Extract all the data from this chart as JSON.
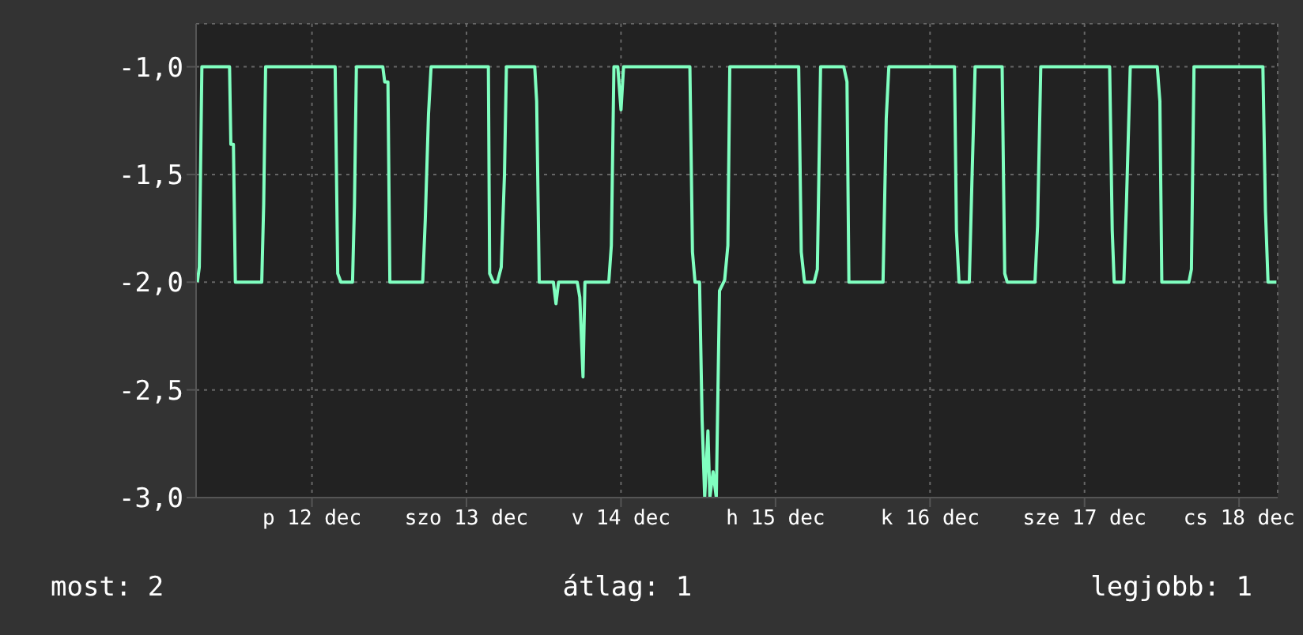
{
  "chart_data": {
    "type": "line",
    "x": [
      "--12-11T18:12",
      "--12-11T18:30",
      "--12-11T18:54",
      "--12-11T23:12",
      "--12-11T23:24",
      "--12-11T23:48",
      "--12-12T00:06",
      "--12-12T04:12",
      "--12-12T04:30",
      "--12-12T04:48",
      "--12-12T15:36",
      "--12-12T16:00",
      "--12-12T16:30",
      "--12-12T18:18",
      "--12-12T18:36",
      "--12-12T18:54",
      "--12-12T23:00",
      "--12-12T23:18",
      "--12-12T23:48",
      "--12-13T00:06",
      "--12-13T05:12",
      "--12-13T05:36",
      "--12-13T06:06",
      "--12-13T06:30",
      "--12-13T15:24",
      "--12-13T15:36",
      "--12-13T16:12",
      "--12-13T16:48",
      "--12-13T17:24",
      "--12-13T17:54",
      "--12-13T18:12",
      "--12-13T22:36",
      "--12-13T22:54",
      "--12-13T23:18",
      "--12-14T01:30",
      "--12-14T01:54",
      "--12-14T02:18",
      "--12-14T05:12",
      "--12-14T05:36",
      "--12-14T06:06",
      "--12-14T06:24",
      "--12-14T10:06",
      "--12-14T10:30",
      "--12-14T10:54",
      "--12-14T11:30",
      "--12-14T12:00",
      "--12-14T12:24",
      "--12-14T22:42",
      "--12-14T23:06",
      "--12-14T23:30",
      "--12-15T00:12",
      "--12-15T00:36",
      "--12-15T01:00",
      "--12-15T01:30",
      "--12-15T01:48",
      "--12-15T02:18",
      "--12-15T02:48",
      "--12-15T03:18",
      "--12-15T04:06",
      "--12-15T04:36",
      "--12-15T04:54",
      "--12-15T15:36",
      "--12-15T16:00",
      "--12-15T16:30",
      "--12-15T18:00",
      "--12-15T18:30",
      "--12-15T19:00",
      "--12-15T22:36",
      "--12-15T23:06",
      "--12-15T23:24",
      "--12-16T04:42",
      "--12-16T05:12",
      "--12-16T05:36",
      "--12-16T15:48",
      "--12-16T16:06",
      "--12-16T16:30",
      "--12-16T18:06",
      "--12-16T18:30",
      "--12-16T19:00",
      "--12-16T23:12",
      "--12-16T23:36",
      "--12-17T00:00",
      "--12-17T04:18",
      "--12-17T04:42",
      "--12-17T05:12",
      "--12-17T15:54",
      "--12-17T16:18",
      "--12-17T16:36",
      "--12-17T18:06",
      "--12-17T18:30",
      "--12-17T19:06",
      "--12-17T23:18",
      "--12-17T23:42",
      "--12-18T00:00",
      "--12-18T04:12",
      "--12-18T04:36",
      "--12-18T05:00",
      "--12-18T15:42",
      "--12-18T16:06",
      "--12-18T16:30",
      "--12-18T17:48"
    ],
    "series": [
      {
        "color": "#80ffc0",
        "values": [
          -2.0,
          -1.93,
          -1.0,
          -1.0,
          -1.36,
          -1.36,
          -2.0,
          -2.0,
          -1.64,
          -1.0,
          -1.0,
          -1.96,
          -2.0,
          -2.0,
          -1.64,
          -1.0,
          -1.0,
          -1.07,
          -1.07,
          -2.0,
          -2.0,
          -1.71,
          -1.22,
          -1.0,
          -1.0,
          -1.96,
          -2.0,
          -2.0,
          -1.93,
          -1.5,
          -1.0,
          -1.0,
          -1.16,
          -2.0,
          -2.0,
          -2.1,
          -2.0,
          -2.0,
          -2.07,
          -2.44,
          -2.0,
          -2.0,
          -1.83,
          -1.0,
          -1.0,
          -1.2,
          -1.0,
          -1.0,
          -1.86,
          -2.0,
          -2.0,
          -2.64,
          -3.0,
          -2.69,
          -3.0,
          -2.88,
          -3.0,
          -2.04,
          -1.99,
          -1.83,
          -1.0,
          -1.0,
          -1.86,
          -2.0,
          -2.0,
          -1.94,
          -1.0,
          -1.0,
          -1.07,
          -2.0,
          -2.0,
          -1.24,
          -1.0,
          -1.0,
          -1.76,
          -2.0,
          -2.0,
          -1.54,
          -1.0,
          -1.0,
          -1.96,
          -2.0,
          -2.0,
          -1.74,
          -1.0,
          -1.0,
          -1.76,
          -2.0,
          -2.0,
          -1.64,
          -1.0,
          -1.0,
          -1.16,
          -2.0,
          -2.0,
          -1.94,
          -1.0,
          -1.0,
          -1.67,
          -2.0,
          -2.0
        ]
      }
    ],
    "xlim": [
      "--12-11T18:00",
      "--12-18T18:00"
    ],
    "xticks": [
      {
        "value": "--12-12T12:00",
        "label": "p 12 dec"
      },
      {
        "value": "--12-13T12:00",
        "label": "szo 13 dec"
      },
      {
        "value": "--12-14T12:00",
        "label": "v 14 dec"
      },
      {
        "value": "--12-15T12:00",
        "label": "h 15 dec"
      },
      {
        "value": "--12-16T12:00",
        "label": "k 16 dec"
      },
      {
        "value": "--12-17T12:00",
        "label": "sze 17 dec"
      },
      {
        "value": "--12-18T12:00",
        "label": "cs 18 dec"
      }
    ],
    "ylim": [
      -3,
      -0.8
    ],
    "yticks": [
      {
        "value": -3,
        "label": "-3,0"
      },
      {
        "value": -2.5,
        "label": "-2,5"
      },
      {
        "value": -2,
        "label": "-2,0"
      },
      {
        "value": -1.5,
        "label": "-1,5"
      },
      {
        "value": -1,
        "label": "-1,0"
      }
    ],
    "grid": true,
    "marker": "none",
    "line_style": "solid",
    "annotations": [
      "most: 2",
      "átlag: 1",
      "legjobb: 1"
    ]
  }
}
